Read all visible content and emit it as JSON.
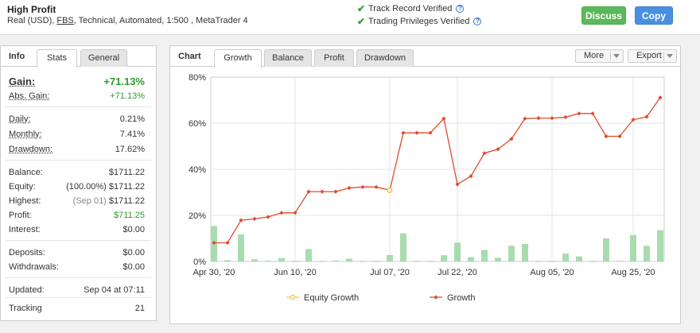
{
  "header": {
    "title": "High Profit",
    "account_type": "Real (USD),",
    "broker": "FBS",
    "details": ", Technical, Automated, 1:500 , MetaTrader 4",
    "verified": [
      "Track Record Verified",
      "Trading Privileges Verified"
    ],
    "help_glyph": "?",
    "discuss_label": "Discuss",
    "copy_label": "Copy"
  },
  "left_panel": {
    "title": "Info",
    "tabs": [
      "Stats",
      "General"
    ],
    "gain": {
      "label": "Gain:",
      "value": "+71.13%"
    },
    "abs_gain": {
      "label": "Abs. Gain:",
      "value": "+71.13%"
    },
    "daily": {
      "label": "Daily:",
      "value": "0.21%"
    },
    "monthly": {
      "label": "Monthly:",
      "value": "7.41%"
    },
    "drawdown": {
      "label": "Drawdown:",
      "value": "17.62%"
    },
    "balance": {
      "label": "Balance:",
      "value": "$1711.22"
    },
    "equity": {
      "label": "Equity:",
      "pct": "(100.00%)",
      "value": "$1711.22"
    },
    "highest": {
      "label": "Highest:",
      "date": "(Sep 01)",
      "value": "$1711.22"
    },
    "profit": {
      "label": "Profit:",
      "value": "$711.25"
    },
    "interest": {
      "label": "Interest:",
      "value": "$0.00"
    },
    "deposits": {
      "label": "Deposits:",
      "value": "$0.00"
    },
    "withdrawals": {
      "label": "Withdrawals:",
      "value": "$0.00"
    },
    "updated": {
      "label": "Updated:",
      "value": "Sep 04 at 07:11"
    },
    "tracking": {
      "label": "Tracking",
      "value": "21"
    }
  },
  "chart_panel": {
    "title": "Chart",
    "tabs": [
      "Growth",
      "Balance",
      "Profit",
      "Drawdown"
    ],
    "active_tab": "Growth",
    "more_label": "More",
    "export_label": "Export"
  },
  "colors": {
    "growth_line": "#e04a2a",
    "equity_line": "#f5c242",
    "bars": "#a8dcae",
    "accent_green": "#2e9b2e",
    "discuss": "#5cb85c",
    "copy": "#4a90e2"
  },
  "chart_data": {
    "type": "line",
    "title": "",
    "xlabel": "",
    "ylabel": "",
    "ylim": [
      0,
      80
    ],
    "yticks": [
      "0%",
      "20%",
      "40%",
      "60%",
      "80%"
    ],
    "xtick_labels": [
      "Apr 30, '20",
      "Jun 10, '20",
      "Jul 07, '20",
      "Jul 22, '20",
      "Aug 05, '20",
      "Aug 25, '20"
    ],
    "xtick_index": [
      0,
      6,
      13,
      18,
      25,
      31
    ],
    "grid": true,
    "legend_position": "bottom",
    "series": [
      {
        "name": "Growth",
        "values": [
          8.1,
          8.1,
          17.9,
          18.5,
          19.3,
          21.1,
          21.1,
          30.3,
          30.3,
          30.3,
          31.9,
          32.3,
          32.3,
          30.9,
          55.8,
          55.8,
          55.8,
          62.0,
          33.5,
          37.0,
          47.0,
          48.7,
          53.2,
          62.0,
          62.2,
          62.2,
          62.6,
          64.2,
          64.2,
          54.3,
          54.3,
          61.5,
          62.8,
          71.1
        ]
      },
      {
        "name": "Equity Growth",
        "points": [
          {
            "index": 13,
            "value": 30.9
          }
        ]
      },
      {
        "name": "bars",
        "values": [
          15.4,
          0.6,
          11.7,
          1.0,
          0.3,
          1.5,
          0.3,
          5.4,
          0.3,
          0.4,
          1.2,
          0.3,
          0.3,
          2.8,
          12.2,
          0.3,
          0.3,
          2.7,
          8.2,
          1.9,
          5.0,
          1.6,
          6.8,
          7.6,
          0.3,
          0.3,
          3.4,
          2.2,
          0.3,
          10.0,
          0.3,
          11.5,
          6.8,
          13.6
        ]
      }
    ]
  }
}
